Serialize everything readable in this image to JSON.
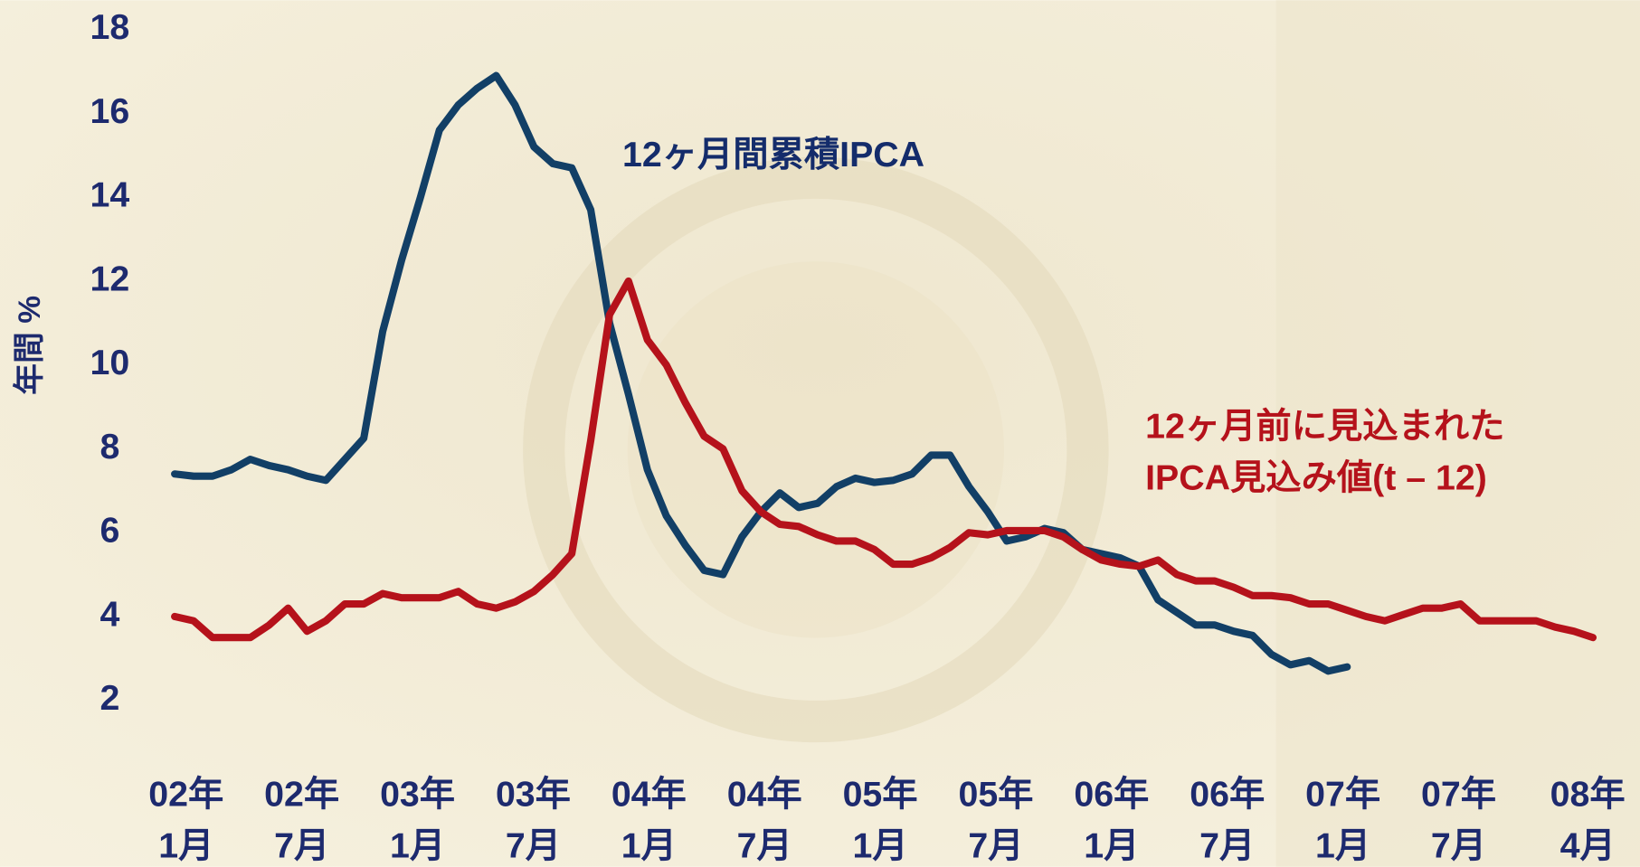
{
  "chart_data": {
    "type": "line",
    "y_label": "年間 %",
    "ylim": [
      1,
      18
    ],
    "yticks": [
      2,
      4,
      6,
      8,
      10,
      12,
      14,
      16,
      18
    ],
    "categories": [
      "02年\n1月",
      null,
      null,
      null,
      null,
      null,
      "02年\n7月",
      null,
      null,
      null,
      null,
      null,
      "03年\n1月",
      null,
      null,
      null,
      null,
      null,
      "03年\n7月",
      null,
      null,
      null,
      null,
      null,
      "04年\n1月",
      null,
      null,
      null,
      null,
      null,
      "04年\n7月",
      null,
      null,
      null,
      null,
      null,
      "05年\n1月",
      null,
      null,
      null,
      null,
      null,
      "05年\n7月",
      null,
      null,
      null,
      null,
      null,
      "06年\n1月",
      null,
      null,
      null,
      null,
      null,
      "06年\n7月",
      null,
      null,
      null,
      null,
      null,
      "07年\n1月",
      null,
      null,
      null,
      null,
      null,
      "07年\n7月",
      null,
      null,
      null,
      null,
      null,
      null,
      null,
      null,
      "08年\n4月"
    ],
    "series": [
      {
        "name": "12ヶ月間累積IPCA",
        "color": "#123f66",
        "values": [
          7.4,
          7.35,
          7.35,
          7.5,
          7.75,
          7.6,
          7.5,
          7.35,
          7.25,
          7.75,
          8.25,
          10.8,
          12.5,
          14.0,
          15.6,
          16.2,
          16.6,
          16.9,
          16.2,
          15.2,
          14.8,
          14.7,
          13.7,
          11.0,
          9.3,
          7.5,
          6.4,
          5.7,
          5.1,
          5.0,
          5.9,
          6.5,
          6.95,
          6.6,
          6.7,
          7.1,
          7.3,
          7.2,
          7.25,
          7.4,
          7.85,
          7.85,
          7.1,
          6.5,
          5.8,
          5.9,
          6.1,
          6.0,
          5.6,
          5.5,
          5.4,
          5.2,
          4.4,
          4.1,
          3.8,
          3.8,
          3.65,
          3.55,
          3.1,
          2.85,
          2.95,
          2.7,
          2.8,
          null,
          null,
          null,
          null,
          null,
          null,
          null,
          null,
          null,
          null,
          null,
          null,
          null
        ]
      },
      {
        "name": "12ヶ月前に見込まれた\nIPCA見込み値(t – 12)",
        "color": "#b5121b",
        "values": [
          4.0,
          3.9,
          3.5,
          3.5,
          3.5,
          3.8,
          4.2,
          3.65,
          3.9,
          4.3,
          4.3,
          4.55,
          4.45,
          4.45,
          4.45,
          4.6,
          4.3,
          4.2,
          4.35,
          4.6,
          5.0,
          5.5,
          8.2,
          11.2,
          12.0,
          10.6,
          10.0,
          9.1,
          8.3,
          8.0,
          7.0,
          6.5,
          6.2,
          6.15,
          5.95,
          5.8,
          5.8,
          5.6,
          5.25,
          5.25,
          5.4,
          5.65,
          6.0,
          5.95,
          6.05,
          6.05,
          6.05,
          5.9,
          5.6,
          5.35,
          5.25,
          5.2,
          5.35,
          5.0,
          4.85,
          4.85,
          4.7,
          4.5,
          4.5,
          4.45,
          4.3,
          4.3,
          4.15,
          4.0,
          3.9,
          4.05,
          4.2,
          4.2,
          4.3,
          3.9,
          3.9,
          3.9,
          3.9,
          3.75,
          3.65,
          3.5
        ]
      }
    ]
  }
}
